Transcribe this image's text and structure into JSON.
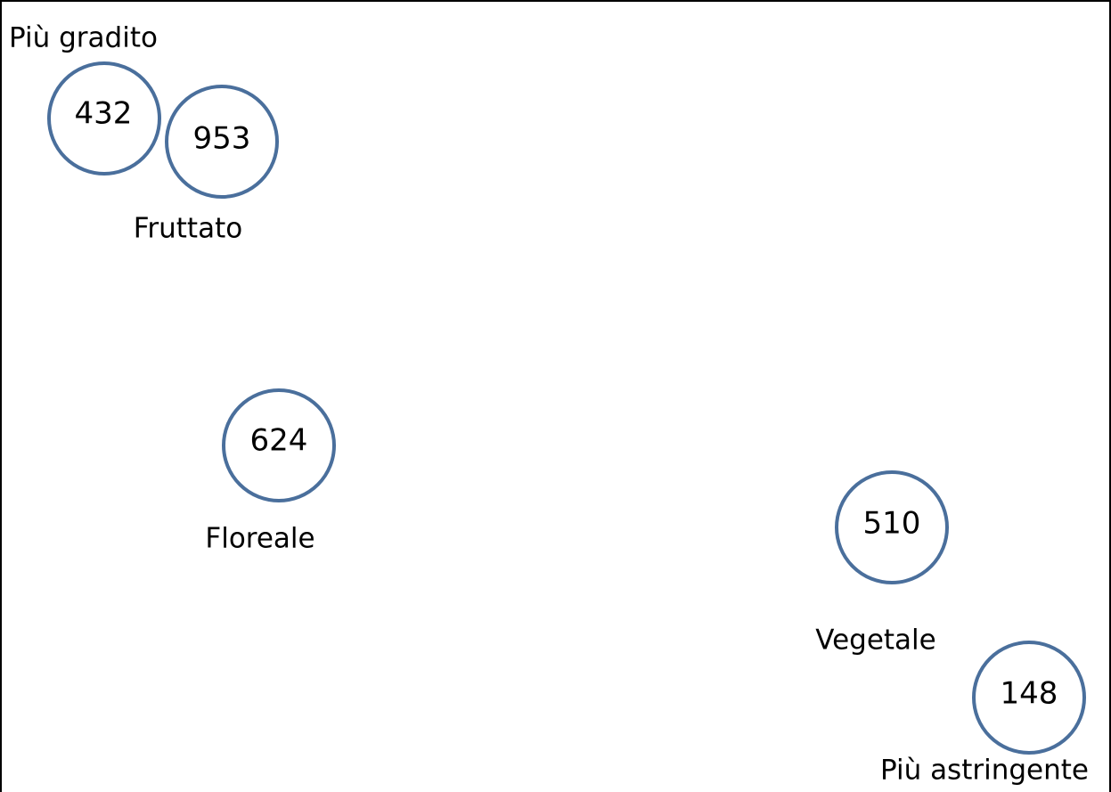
{
  "axis_labels": {
    "top": "Più gradito",
    "bottom": "Più astringente"
  },
  "nodes": [
    {
      "label": "432"
    },
    {
      "label": "953"
    },
    {
      "label": "624"
    },
    {
      "label": "510"
    },
    {
      "label": "148"
    }
  ],
  "groups": [
    "Fruttato",
    "Floreale",
    "Vegetale"
  ]
}
